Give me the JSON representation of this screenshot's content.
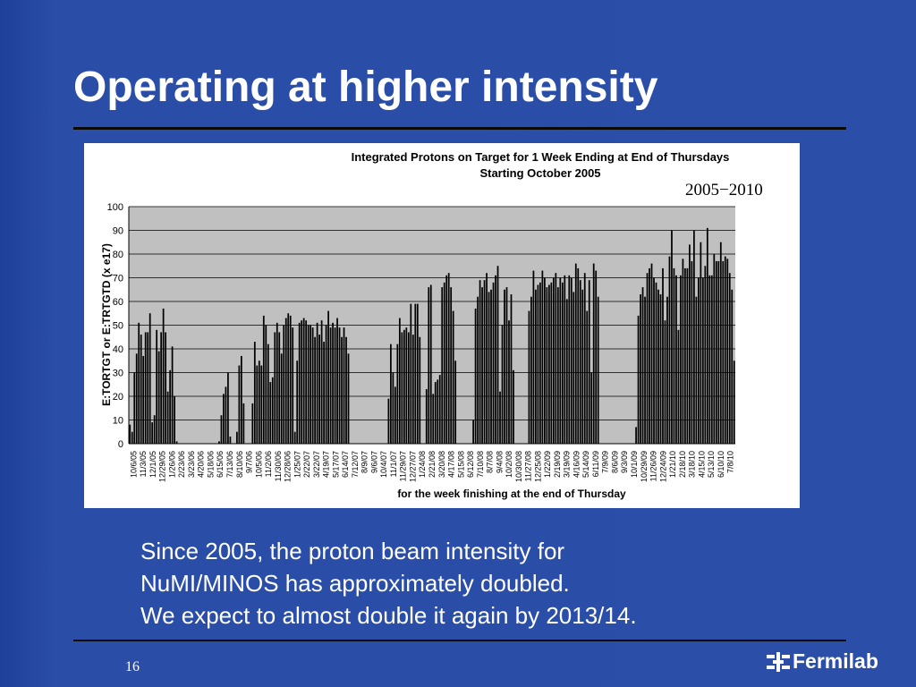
{
  "slide": {
    "title": "Operating at higher intensity",
    "body_lines": [
      "Since 2005, the proton beam intensity for",
      "NuMI/MINOS has approximately doubled.",
      "We expect to almost double it again by 2013/14."
    ],
    "page_number": "16",
    "logo_text": "Fermilab"
  },
  "colors": {
    "background": "#2b4fa9",
    "text": "#ffffff",
    "bar": "#000000",
    "plot_area": "#c0c0c0"
  },
  "chart_data": {
    "type": "bar",
    "title_lines": [
      "Integrated Protons on Target for 1 Week Ending at End of Thursdays",
      "Starting October 2005"
    ],
    "annotation": "2005−2010",
    "xlabel": "for the week finishing at the end of Thursday",
    "ylabel": "E:TORTGT or E:TRTGTD (x e17)",
    "ylim": [
      0,
      100
    ],
    "yticks": [
      0,
      10,
      20,
      30,
      40,
      50,
      60,
      70,
      80,
      90,
      100
    ],
    "grid": true,
    "x_tick_labels": [
      "10/6/05",
      "11/3/05",
      "12/1/05",
      "12/29/05",
      "1/26/06",
      "2/23/06",
      "3/23/06",
      "4/20/06",
      "5/18/06",
      "6/15/06",
      "7/13/06",
      "8/10/06",
      "9/7/06",
      "10/5/06",
      "11/2/06",
      "11/30/06",
      "12/28/06",
      "1/25/07",
      "2/22/07",
      "3/22/07",
      "4/19/07",
      "5/17/07",
      "6/14/07",
      "7/12/07",
      "8/9/07",
      "9/6/07",
      "10/4/07",
      "11/1/07",
      "11/29/07",
      "12/27/07",
      "1/24/08",
      "2/21/08",
      "3/20/08",
      "4/17/08",
      "5/15/08",
      "6/12/08",
      "7/10/08",
      "8/7/08",
      "9/4/08",
      "10/2/08",
      "10/30/08",
      "11/27/08",
      "12/25/08",
      "1/22/09",
      "2/19/09",
      "3/19/09",
      "4/16/09",
      "5/14/09",
      "6/11/09",
      "7/9/09",
      "8/6/09",
      "9/3/09",
      "10/1/09",
      "10/29/09",
      "11/26/09",
      "12/24/09",
      "1/21/10",
      "2/18/10",
      "3/18/10",
      "4/15/10",
      "5/13/10",
      "6/10/10",
      "7/8/10"
    ],
    "values": [
      8,
      5,
      30,
      38,
      51,
      46,
      37,
      47,
      47,
      55,
      9,
      12,
      48,
      39,
      47,
      57,
      47,
      22,
      31,
      41,
      20,
      1,
      0,
      0,
      0,
      0,
      0,
      0,
      0,
      0,
      0,
      0,
      0,
      0,
      0,
      0,
      0,
      0,
      0,
      0,
      1,
      12,
      21,
      24,
      30,
      3,
      0,
      0,
      5,
      33,
      37,
      17,
      0,
      0,
      0,
      17,
      43,
      33,
      35,
      33,
      54,
      50,
      42,
      26,
      28,
      47,
      51,
      47,
      38,
      50,
      53,
      55,
      54,
      49,
      5,
      35,
      51,
      52,
      53,
      52,
      50,
      50,
      49,
      45,
      51,
      46,
      52,
      43,
      50,
      56,
      49,
      51,
      49,
      53,
      49,
      45,
      49,
      45,
      38,
      0,
      0,
      0,
      0,
      0,
      0,
      0,
      0,
      0,
      0,
      0,
      0,
      0,
      0,
      0,
      0,
      0,
      19,
      42,
      30,
      24,
      42,
      53,
      47,
      48,
      49,
      47,
      59,
      46,
      59,
      59,
      45,
      0,
      0,
      23,
      66,
      67,
      21,
      26,
      27,
      29,
      66,
      68,
      71,
      72,
      66,
      56,
      35,
      0,
      0,
      0,
      0,
      0,
      0,
      0,
      10,
      57,
      62,
      69,
      66,
      69,
      72,
      64,
      65,
      68,
      71,
      75,
      22,
      50,
      65,
      66,
      52,
      63,
      31,
      0,
      0,
      0,
      0,
      0,
      0,
      56,
      62,
      73,
      65,
      67,
      68,
      73,
      70,
      66,
      67,
      68,
      70,
      72,
      66,
      70,
      68,
      71,
      61,
      71,
      70,
      64,
      76,
      74,
      69,
      65,
      72,
      56,
      69,
      30,
      76,
      73,
      62,
      0,
      0,
      0,
      0,
      0,
      0,
      0,
      0,
      0,
      0,
      0,
      0,
      0,
      0,
      0,
      0,
      7,
      54,
      63,
      66,
      62,
      72,
      74,
      76,
      70,
      68,
      65,
      63,
      74,
      52,
      62,
      79,
      90,
      74,
      71,
      48,
      71,
      78,
      74,
      74,
      84,
      77,
      90,
      62,
      70,
      85,
      70,
      75,
      91,
      71,
      71,
      80,
      77,
      77,
      85,
      77,
      79,
      78,
      72,
      65,
      35
    ]
  }
}
